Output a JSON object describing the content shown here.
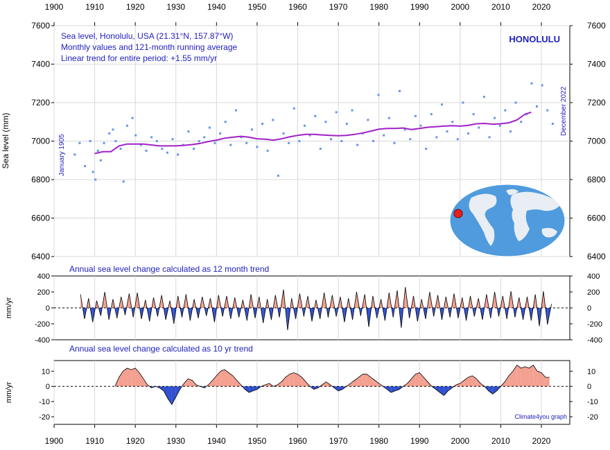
{
  "chart_data": {
    "type": "line",
    "xlim": [
      1900,
      2027
    ],
    "x_ticks": [
      1900,
      1910,
      1920,
      1930,
      1940,
      1950,
      1960,
      1970,
      1980,
      1990,
      2000,
      2010,
      2020
    ],
    "panels": [
      {
        "id": "sea_level",
        "type": "scatter",
        "ylabel": "Sea level (mm)",
        "ylim": [
          6400,
          7600
        ],
        "y_ticks": [
          6400,
          6600,
          6800,
          7000,
          7200,
          7400,
          7600
        ],
        "info_lines": [
          "Sea level, Honolulu, USA (21.31°N, 157.87°W)",
          "Monthly values and 121-month running average",
          "Linear trend for entire period: +1.55 mm/yr"
        ],
        "station_title": "HONOLULU",
        "start_label": "January 1905",
        "end_label": "December 2022",
        "series": [
          {
            "name": "Monthly values",
            "color": "#6495ED",
            "x": [
              1905.1,
              1906.3,
              1907.6,
              1908.9,
              1909.6,
              1910.2,
              1910.8,
              1911.5,
              1912.3,
              1913.6,
              1914.5,
              1915.2,
              1916.4,
              1917.1,
              1918.0,
              1919.3,
              1920.1,
              1921.4,
              1922.7,
              1924.0,
              1925.3,
              1926.6,
              1927.9,
              1929.2,
              1930.5,
              1931.8,
              1933.1,
              1934.4,
              1935.7,
              1937.0,
              1938.3,
              1939.6,
              1940.9,
              1942.2,
              1943.5,
              1944.8,
              1946.1,
              1947.4,
              1948.7,
              1950.0,
              1951.3,
              1952.6,
              1953.9,
              1955.2,
              1956.5,
              1957.8,
              1959.1,
              1960.4,
              1961.7,
              1963.0,
              1964.3,
              1965.6,
              1966.9,
              1968.2,
              1969.5,
              1970.8,
              1972.1,
              1973.4,
              1974.7,
              1976.0,
              1977.3,
              1978.6,
              1979.9,
              1981.2,
              1982.5,
              1983.8,
              1985.1,
              1986.4,
              1987.7,
              1989.0,
              1990.3,
              1991.6,
              1992.9,
              1994.2,
              1995.5,
              1996.8,
              1998.1,
              1999.4,
              2000.7,
              2002.0,
              2003.3,
              2004.6,
              2005.9,
              2007.2,
              2008.5,
              2009.8,
              2011.1,
              2012.4,
              2013.7,
              2015.0,
              2016.3,
              2017.6,
              2018.9,
              2020.2,
              2021.5,
              2022.8
            ],
            "y": [
              6930,
              6990,
              6870,
              7000,
              6840,
              6800,
              6950,
              6900,
              6990,
              7040,
              7060,
              7000,
              6960,
              6790,
              7080,
              7120,
              7030,
              6980,
              6950,
              7020,
              7000,
              6960,
              6940,
              7010,
              6930,
              6980,
              7050,
              6960,
              7000,
              7020,
              7070,
              6990,
              7040,
              7100,
              6980,
              7160,
              7020,
              6990,
              7060,
              6970,
              7090,
              6950,
              7110,
              6820,
              7040,
              6990,
              7170,
              7000,
              7080,
              7030,
              7130,
              6960,
              7100,
              7010,
              7150,
              7000,
              7090,
              7160,
              6980,
              7040,
              7110,
              7000,
              7240,
              7030,
              7120,
              6990,
              7260,
              7060,
              7010,
              7130,
              7080,
              6960,
              7140,
              7020,
              7190,
              7050,
              7100,
              7010,
              7200,
              7040,
              7140,
              7070,
              7230,
              7020,
              7120,
              7080,
              7160,
              7050,
              7200,
              7100,
              7140,
              7300,
              7180,
              7290,
              7160,
              7090
            ]
          },
          {
            "name": "121-month running average",
            "color": "#A020C8",
            "x": [
              1910.0,
              1912.0,
              1914.0,
              1916.0,
              1918.0,
              1920.0,
              1922.0,
              1924.0,
              1926.0,
              1928.0,
              1930.0,
              1932.0,
              1934.0,
              1936.0,
              1938.0,
              1940.0,
              1942.0,
              1944.0,
              1946.0,
              1948.0,
              1950.0,
              1952.0,
              1954.0,
              1956.0,
              1958.0,
              1960.0,
              1962.0,
              1964.0,
              1966.0,
              1968.0,
              1970.0,
              1972.0,
              1974.0,
              1976.0,
              1978.0,
              1980.0,
              1982.0,
              1984.0,
              1986.0,
              1988.0,
              1990.0,
              1992.0,
              1994.0,
              1996.0,
              1998.0,
              2000.0,
              2002.0,
              2004.0,
              2006.0,
              2008.0,
              2010.0,
              2012.0,
              2014.0,
              2016.0,
              2017.5
            ],
            "y": [
              6935,
              6945,
              6945,
              6975,
              6985,
              6985,
              6985,
              6980,
              6975,
              6975,
              6975,
              6978,
              6982,
              6988,
              6998,
              7005,
              7015,
              7020,
              7025,
              7020,
              7012,
              7010,
              7005,
              7012,
              7022,
              7030,
              7035,
              7035,
              7032,
              7030,
              7028,
              7030,
              7035,
              7042,
              7052,
              7062,
              7066,
              7066,
              7068,
              7060,
              7066,
              7072,
              7075,
              7078,
              7080,
              7078,
              7082,
              7090,
              7092,
              7088,
              7090,
              7095,
              7110,
              7140,
              7150
            ]
          }
        ]
      },
      {
        "id": "annual_12m",
        "type": "area",
        "title": "Annual sea level change calculated as 12 month trend",
        "ylabel": "mm/yr",
        "ylim": [
          -400,
          400
        ],
        "y_ticks": [
          -400,
          -200,
          0,
          200,
          400
        ],
        "fill_positive": "#F4A090",
        "fill_negative": "#3050D0",
        "x": [
          1906.5,
          1907.5,
          1908.5,
          1909.5,
          1910.5,
          1911.5,
          1912.5,
          1913.5,
          1914.5,
          1915.5,
          1916.5,
          1917.5,
          1918.5,
          1919.5,
          1920.5,
          1921.5,
          1922.5,
          1923.5,
          1924.5,
          1925.5,
          1926.5,
          1927.5,
          1928.5,
          1929.5,
          1930.5,
          1931.5,
          1932.5,
          1933.5,
          1934.5,
          1935.5,
          1936.5,
          1937.5,
          1938.5,
          1939.5,
          1940.5,
          1941.5,
          1942.5,
          1943.5,
          1944.5,
          1945.5,
          1946.5,
          1947.5,
          1948.5,
          1949.5,
          1950.5,
          1951.5,
          1952.5,
          1953.5,
          1954.5,
          1955.5,
          1956.5,
          1957.5,
          1958.5,
          1959.5,
          1960.5,
          1961.5,
          1962.5,
          1963.5,
          1964.5,
          1965.5,
          1966.5,
          1967.5,
          1968.5,
          1969.5,
          1970.5,
          1971.5,
          1972.5,
          1973.5,
          1974.5,
          1975.5,
          1976.5,
          1977.5,
          1978.5,
          1979.5,
          1980.5,
          1981.5,
          1982.5,
          1983.5,
          1984.5,
          1985.5,
          1986.5,
          1987.5,
          1988.5,
          1989.5,
          1990.5,
          1991.5,
          1992.5,
          1993.5,
          1994.5,
          1995.5,
          1996.5,
          1997.5,
          1998.5,
          1999.5,
          2000.5,
          2001.5,
          2002.5,
          2003.5,
          2004.5,
          2005.5,
          2006.5,
          2007.5,
          2008.5,
          2009.5,
          2010.5,
          2011.5,
          2012.5,
          2013.5,
          2014.5,
          2015.5,
          2016.5,
          2017.5,
          2018.5,
          2019.5,
          2020.5,
          2021.5,
          2022.5
        ],
        "values": [
          170,
          -140,
          120,
          -180,
          90,
          -100,
          200,
          -150,
          110,
          -130,
          140,
          -90,
          180,
          -120,
          190,
          -140,
          100,
          -170,
          130,
          -110,
          160,
          -150,
          90,
          -200,
          150,
          -120,
          170,
          -160,
          110,
          -130,
          140,
          -100,
          120,
          -180,
          160,
          -110,
          150,
          -140,
          130,
          -120,
          100,
          -160,
          170,
          -130,
          140,
          -190,
          110,
          -150,
          160,
          -120,
          230,
          -280,
          120,
          -140,
          180,
          -110,
          150,
          -170,
          100,
          -140,
          190,
          -120,
          160,
          -110,
          140,
          -180,
          120,
          -150,
          200,
          -100,
          170,
          -240,
          150,
          -130,
          110,
          -160,
          190,
          -120,
          220,
          -250,
          260,
          -130,
          150,
          -170,
          110,
          -140,
          200,
          -110,
          160,
          -150,
          140,
          -120,
          180,
          -130,
          130,
          -160,
          150,
          -110,
          120,
          -150,
          170,
          -130,
          200,
          -110,
          150,
          -140,
          210,
          -120,
          130,
          -150,
          140,
          -160,
          170,
          -230,
          210,
          -210,
          50
        ]
      },
      {
        "id": "annual_10yr",
        "type": "area",
        "title": "Annual sea level change calculated as 10 yr trend",
        "ylabel": "mm/yr",
        "ylim": [
          -25,
          17
        ],
        "y_ticks": [
          -20,
          -10,
          0,
          10
        ],
        "fill_positive": "#F4A090",
        "fill_negative": "#3050D0",
        "credit": "Climate4you graph",
        "x": [
          1915.0,
          1916.0,
          1917.0,
          1918.0,
          1919.0,
          1920.0,
          1921.0,
          1922.0,
          1923.0,
          1924.0,
          1925.0,
          1926.0,
          1927.0,
          1928.0,
          1929.0,
          1930.0,
          1931.0,
          1932.0,
          1933.0,
          1934.0,
          1935.0,
          1936.0,
          1937.0,
          1938.0,
          1939.0,
          1940.0,
          1941.0,
          1942.0,
          1943.0,
          1944.0,
          1945.0,
          1946.0,
          1947.0,
          1948.0,
          1949.0,
          1950.0,
          1951.0,
          1952.0,
          1953.0,
          1954.0,
          1955.0,
          1956.0,
          1957.0,
          1958.0,
          1959.0,
          1960.0,
          1961.0,
          1962.0,
          1963.0,
          1964.0,
          1965.0,
          1966.0,
          1967.0,
          1968.0,
          1969.0,
          1970.0,
          1971.0,
          1972.0,
          1973.0,
          1974.0,
          1975.0,
          1976.0,
          1977.0,
          1978.0,
          1979.0,
          1980.0,
          1981.0,
          1982.0,
          1983.0,
          1984.0,
          1985.0,
          1986.0,
          1987.0,
          1988.0,
          1989.0,
          1990.0,
          1991.0,
          1992.0,
          1993.0,
          1994.0,
          1995.0,
          1996.0,
          1997.0,
          1998.0,
          1999.0,
          2000.0,
          2001.0,
          2002.0,
          2003.0,
          2004.0,
          2005.0,
          2006.0,
          2007.0,
          2008.0,
          2009.0,
          2010.0,
          2011.0,
          2012.0,
          2013.0,
          2014.0,
          2015.0,
          2016.0,
          2017.0,
          2018.0,
          2019.0,
          2020.0,
          2021.0,
          2022.0
        ],
        "values": [
          0.0,
          6.0,
          10.0,
          12.0,
          11.0,
          12.0,
          9.0,
          5.0,
          1.0,
          -1.0,
          0.0,
          -1.0,
          -3.0,
          -8.0,
          -12.0,
          -7.0,
          -2.0,
          2.0,
          5.0,
          4.0,
          1.0,
          0.0,
          -1.0,
          1.0,
          4.0,
          7.0,
          10.0,
          11.0,
          9.0,
          7.0,
          4.0,
          1.0,
          -2.0,
          -4.0,
          -3.0,
          -2.0,
          0.0,
          1.0,
          2.0,
          0.0,
          1.0,
          3.0,
          6.0,
          8.0,
          9.0,
          8.0,
          6.0,
          3.0,
          0.0,
          -2.0,
          -1.0,
          1.0,
          3.0,
          1.0,
          -1.0,
          -3.0,
          -2.0,
          0.0,
          2.0,
          4.0,
          6.0,
          8.0,
          8.0,
          6.0,
          4.0,
          2.0,
          0.0,
          -2.0,
          -4.0,
          -3.0,
          -2.0,
          0.0,
          2.0,
          5.0,
          8.0,
          9.0,
          6.0,
          3.0,
          0.0,
          -2.0,
          -4.0,
          -6.0,
          -3.0,
          -1.0,
          1.0,
          2.0,
          4.0,
          6.0,
          7.0,
          5.0,
          2.0,
          0.0,
          -3.0,
          -5.0,
          -3.0,
          0.0,
          3.0,
          7.0,
          10.0,
          14.0,
          12.0,
          13.0,
          12.0,
          14.0,
          10.0,
          9.0,
          6.0,
          6.0
        ]
      }
    ]
  }
}
